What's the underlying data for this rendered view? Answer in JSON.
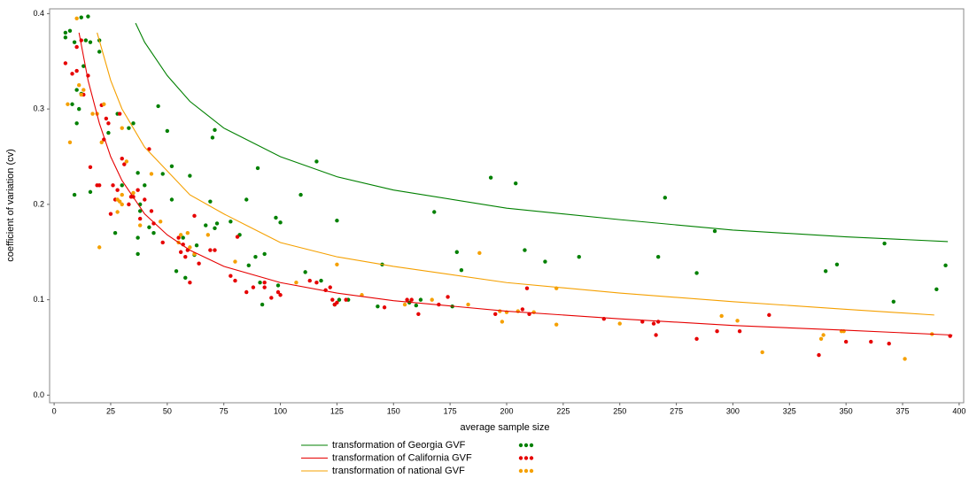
{
  "chart_data": {
    "type": "scatter-curves",
    "x_label": "average sample size",
    "y_label": "coefficient of variation (cv)",
    "xlim": [
      -2,
      402
    ],
    "ylim": [
      -0.008,
      0.405
    ],
    "xticks": [
      0,
      25,
      50,
      75,
      100,
      125,
      150,
      175,
      200,
      225,
      250,
      275,
      300,
      325,
      350,
      375,
      400
    ],
    "yticks": [
      {
        "value": 0,
        "label": "0.0"
      },
      0.1,
      0.2,
      0.3,
      0.4
    ],
    "series": [
      {
        "name": "transformation of Georgia GVF",
        "color": "#008000",
        "curve": {
          "x": [
            36,
            40,
            50,
            60,
            75,
            100,
            125,
            150,
            200,
            250,
            300,
            350,
            395
          ],
          "y": [
            0.39,
            0.37,
            0.335,
            0.308,
            0.28,
            0.25,
            0.229,
            0.215,
            0.196,
            0.184,
            0.173,
            0.166,
            0.161
          ]
        },
        "points": {
          "x": [
            5,
            5,
            7,
            9,
            12,
            15,
            14,
            8,
            10,
            11,
            12,
            13,
            10,
            9,
            16,
            16,
            20,
            20,
            24,
            28,
            30,
            27,
            33,
            35,
            37,
            37,
            37,
            38,
            38,
            40,
            42,
            44,
            46,
            48,
            50,
            52,
            52,
            54,
            57,
            58,
            60,
            62,
            63,
            67,
            69,
            70,
            71,
            71,
            72,
            78,
            82,
            85,
            86,
            89,
            90,
            91,
            92,
            93,
            98,
            99,
            100,
            109,
            111,
            116,
            118,
            124,
            125,
            126,
            130,
            143,
            145,
            157,
            160,
            162,
            168,
            176,
            178,
            180,
            193,
            204,
            208,
            217,
            232,
            267,
            270,
            284,
            292,
            341,
            346,
            367,
            371,
            390,
            394
          ],
          "y": [
            0.38,
            0.375,
            0.382,
            0.37,
            0.396,
            0.397,
            0.372,
            0.305,
            0.32,
            0.3,
            0.316,
            0.345,
            0.285,
            0.21,
            0.213,
            0.37,
            0.372,
            0.36,
            0.275,
            0.295,
            0.22,
            0.17,
            0.28,
            0.285,
            0.233,
            0.165,
            0.148,
            0.2,
            0.193,
            0.22,
            0.176,
            0.17,
            0.303,
            0.232,
            0.277,
            0.205,
            0.24,
            0.13,
            0.165,
            0.123,
            0.23,
            0.147,
            0.157,
            0.178,
            0.203,
            0.27,
            0.278,
            0.175,
            0.18,
            0.182,
            0.168,
            0.205,
            0.136,
            0.145,
            0.238,
            0.118,
            0.095,
            0.148,
            0.186,
            0.115,
            0.181,
            0.21,
            0.129,
            0.245,
            0.12,
            0.095,
            0.183,
            0.1,
            0.1,
            0.093,
            0.137,
            0.097,
            0.094,
            0.1,
            0.192,
            0.093,
            0.15,
            0.131,
            0.228,
            0.222,
            0.152,
            0.14,
            0.145,
            0.145,
            0.207,
            0.128,
            0.172,
            0.13,
            0.137,
            0.159,
            0.098,
            0.111,
            0.136
          ]
        }
      },
      {
        "name": "transformation of California GVF",
        "color": "#e60000",
        "curve": {
          "x": [
            11,
            15,
            20,
            25,
            30,
            40,
            50,
            60,
            75,
            100,
            125,
            150,
            200,
            250,
            300,
            350,
            397
          ],
          "y": [
            0.38,
            0.33,
            0.285,
            0.25,
            0.225,
            0.19,
            0.168,
            0.152,
            0.135,
            0.118,
            0.107,
            0.099,
            0.088,
            0.08,
            0.073,
            0.068,
            0.063
          ]
        },
        "points": {
          "x": [
            5,
            8,
            10,
            10,
            12,
            13,
            15,
            16,
            19,
            20,
            21,
            22,
            23,
            24,
            25,
            26,
            27,
            28,
            29,
            30,
            31,
            33,
            34,
            35,
            37,
            38,
            40,
            42,
            43,
            44,
            48,
            55,
            56,
            57,
            58,
            59,
            60,
            62,
            64,
            69,
            71,
            78,
            80,
            81,
            85,
            88,
            93,
            93,
            96,
            99,
            100,
            113,
            116,
            120,
            122,
            123,
            124,
            125,
            129,
            146,
            156,
            158,
            161,
            170,
            174,
            195,
            207,
            209,
            210,
            243,
            260,
            265,
            266,
            267,
            284,
            293,
            303,
            316,
            338,
            350,
            361,
            369,
            396
          ],
          "y": [
            0.348,
            0.337,
            0.34,
            0.365,
            0.372,
            0.315,
            0.335,
            0.239,
            0.22,
            0.22,
            0.304,
            0.268,
            0.29,
            0.285,
            0.19,
            0.22,
            0.205,
            0.215,
            0.295,
            0.248,
            0.242,
            0.2,
            0.208,
            0.208,
            0.215,
            0.185,
            0.205,
            0.258,
            0.193,
            0.18,
            0.16,
            0.165,
            0.15,
            0.158,
            0.145,
            0.152,
            0.118,
            0.188,
            0.138,
            0.152,
            0.152,
            0.125,
            0.12,
            0.166,
            0.108,
            0.113,
            0.118,
            0.113,
            0.102,
            0.108,
            0.105,
            0.12,
            0.118,
            0.11,
            0.113,
            0.1,
            0.095,
            0.097,
            0.1,
            0.092,
            0.1,
            0.1,
            0.085,
            0.095,
            0.103,
            0.085,
            0.09,
            0.112,
            0.085,
            0.08,
            0.077,
            0.075,
            0.063,
            0.077,
            0.059,
            0.067,
            0.067,
            0.084,
            0.042,
            0.056,
            0.056,
            0.054,
            0.062
          ]
        }
      },
      {
        "name": "transformation of national GVF",
        "color": "#f5a000",
        "curve": {
          "x": [
            19,
            25,
            30,
            40,
            50,
            60,
            75,
            100,
            125,
            150,
            200,
            250,
            300,
            350,
            389
          ],
          "y": [
            0.38,
            0.33,
            0.3,
            0.26,
            0.235,
            0.21,
            0.19,
            0.16,
            0.145,
            0.135,
            0.118,
            0.107,
            0.098,
            0.09,
            0.084
          ]
        },
        "points": {
          "x": [
            6,
            7,
            10,
            11,
            12,
            13,
            17,
            19,
            20,
            21,
            22,
            28,
            28,
            29,
            30,
            30,
            30,
            32,
            35,
            38,
            43,
            47,
            55,
            56,
            59,
            60,
            62,
            68,
            80,
            107,
            125,
            136,
            155,
            167,
            183,
            188,
            197,
            198,
            200,
            205,
            212,
            222,
            222,
            250,
            295,
            302,
            313,
            339,
            340,
            348,
            349,
            376,
            388
          ],
          "y": [
            0.305,
            0.265,
            0.395,
            0.325,
            0.315,
            0.32,
            0.295,
            0.295,
            0.155,
            0.265,
            0.305,
            0.205,
            0.192,
            0.203,
            0.21,
            0.2,
            0.28,
            0.245,
            0.212,
            0.178,
            0.232,
            0.182,
            0.16,
            0.168,
            0.17,
            0.155,
            0.148,
            0.168,
            0.14,
            0.118,
            0.137,
            0.105,
            0.095,
            0.1,
            0.095,
            0.149,
            0.088,
            0.077,
            0.087,
            0.088,
            0.087,
            0.112,
            0.074,
            0.075,
            0.083,
            0.078,
            0.045,
            0.059,
            0.063,
            0.067,
            0.067,
            0.038,
            0.064
          ]
        }
      }
    ]
  }
}
